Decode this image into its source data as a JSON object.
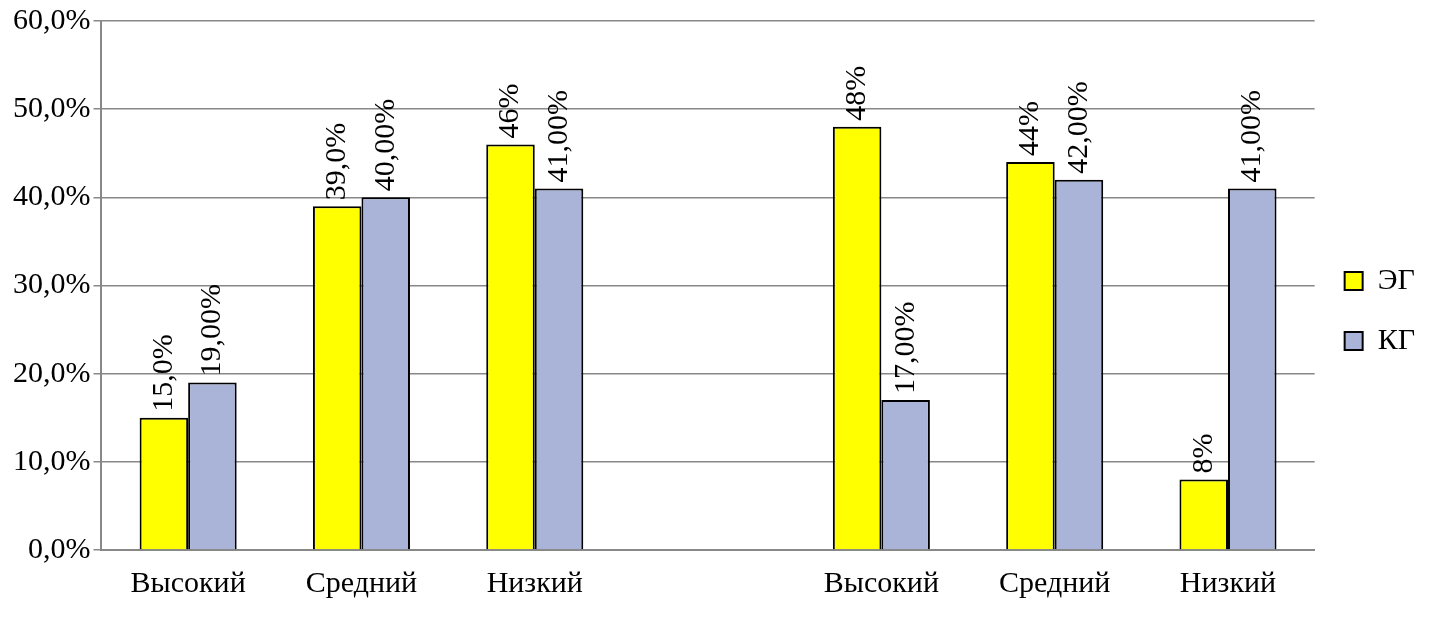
{
  "chart_data": {
    "type": "bar",
    "categories": [
      "Высокий",
      "Средний",
      "Низкий",
      null,
      "Высокий",
      "Средний",
      "Низкий"
    ],
    "series": [
      {
        "name": "ЭГ",
        "color": "#ffff00",
        "values": [
          15,
          39,
          46,
          null,
          48,
          44,
          8
        ],
        "value_labels": [
          "15,0%",
          "39,0%",
          "46%",
          null,
          "48%",
          "44%",
          "8%"
        ]
      },
      {
        "name": "КГ",
        "color": "#a9b4d8",
        "values": [
          19,
          40,
          41,
          null,
          17,
          42,
          41
        ],
        "value_labels": [
          "19,00%",
          "40,00%",
          "41,00%",
          null,
          "17,00%",
          "42,00%",
          "41,00%"
        ]
      }
    ],
    "ylim": [
      0,
      60
    ],
    "yticks": [
      {
        "value": 0,
        "label": "0,0%"
      },
      {
        "value": 10,
        "label": "10,0%"
      },
      {
        "value": 20,
        "label": "20,0%"
      },
      {
        "value": 30,
        "label": "30,0%"
      },
      {
        "value": 40,
        "label": "40,0%"
      },
      {
        "value": 50,
        "label": "50,0%"
      },
      {
        "value": 60,
        "label": "60,0%"
      }
    ],
    "grid": "y",
    "legend": "right"
  }
}
